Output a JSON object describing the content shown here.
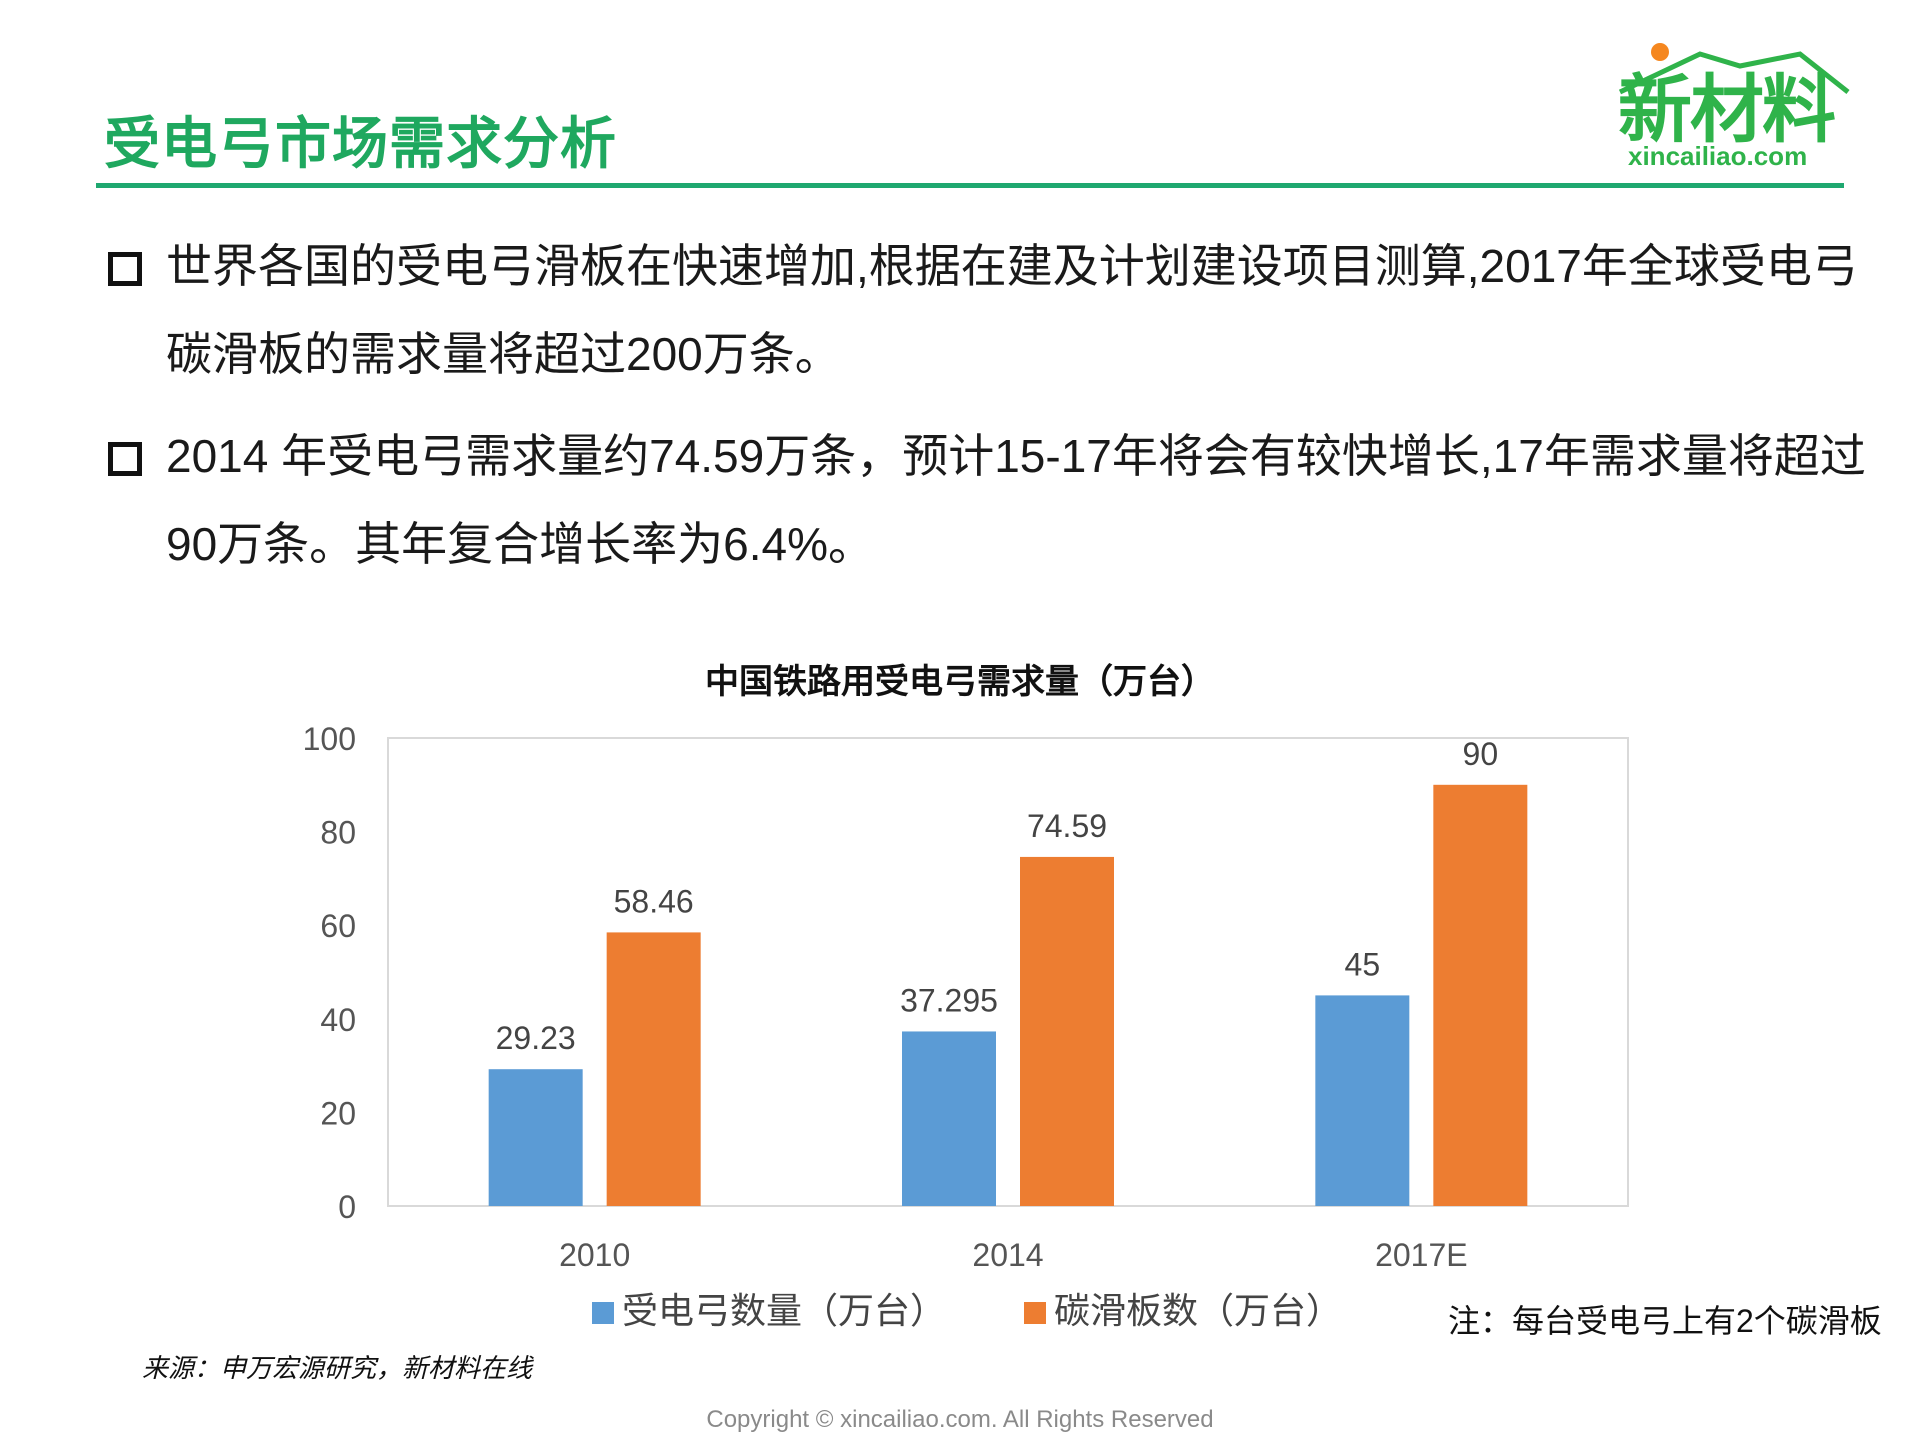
{
  "header": {
    "title": "受电弓市场需求分析",
    "logo_text": "新材料",
    "logo_url": "xincailiao.com"
  },
  "bullets": [
    {
      "text": "世界各国的受电弓滑板在快速增加,根据在建及计划建设项目测算,2017年全球受电弓碳滑板的需求量将超过200万条。"
    },
    {
      "text": "2014 年受电弓需求量约74.59万条，预计15-17年将会有较快增长,17年需求量将超过90万条。其年复合增长率为6.4%。"
    }
  ],
  "chart_data": {
    "type": "bar",
    "title": "中国铁路用受电弓需求量（万台）",
    "categories": [
      "2010",
      "2014",
      "2017E"
    ],
    "series": [
      {
        "name": "受电弓数量（万台）",
        "values": [
          29.23,
          37.295,
          45
        ],
        "labels": [
          "29.23",
          "37.295",
          "45"
        ],
        "color": "#5b9bd5"
      },
      {
        "name": "碳滑板数（万台）",
        "values": [
          58.46,
          74.59,
          90
        ],
        "labels": [
          "58.46",
          "74.59",
          "90"
        ],
        "color": "#ed7d31"
      }
    ],
    "ylim": [
      0,
      100
    ],
    "yticks": [
      0,
      20,
      40,
      60,
      80,
      100
    ],
    "xlabel": "",
    "ylabel": "",
    "grid": false,
    "legend": "bottom"
  },
  "note": "注：每台受电弓上有2个碳滑板",
  "source": "来源：申万宏源研究，新材料在线",
  "copyright": "Copyright © xincailiao.com. All Rights Reserved"
}
